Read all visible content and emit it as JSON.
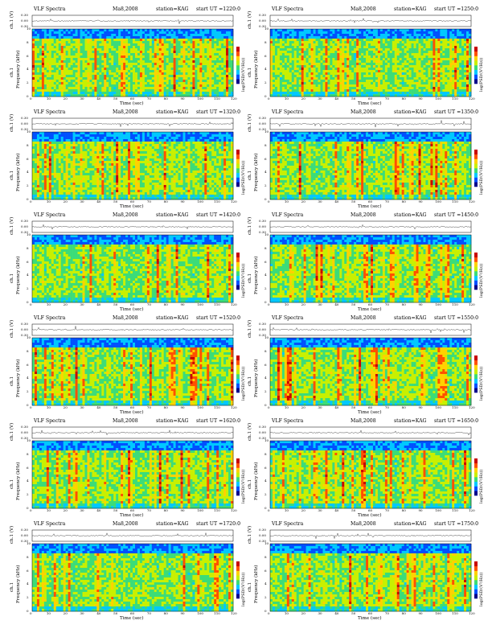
{
  "panels": [
    {
      "title": "VLF Spectra",
      "date": "Ma8,2008",
      "station": "station=KAG",
      "start": "start UT =1220:0"
    },
    {
      "title": "VLF Spectra",
      "date": "Ma8,2008",
      "station": "station=KAG",
      "start": "start UT =1250:0"
    },
    {
      "title": "VLF Spectra",
      "date": "Ma8,2008",
      "station": "station=KAG",
      "start": "start UT =1320:0"
    },
    {
      "title": "VLF Spectra",
      "date": "Ma8,2008",
      "station": "station=KAG",
      "start": "start UT =1350:0"
    },
    {
      "title": "VLF Spectra",
      "date": "Ma8,2008",
      "station": "station=KAG",
      "start": "start UT =1420:0"
    },
    {
      "title": "VLF Spectra",
      "date": "Ma8,2008",
      "station": "station=KAG",
      "start": "start UT =1450:0"
    },
    {
      "title": "VLF Spectra",
      "date": "Ma8,2008",
      "station": "station=KAG",
      "start": "start UT =1520:0"
    },
    {
      "title": "VLF Spectra",
      "date": "Ma8,2008",
      "station": "station=KAG",
      "start": "start UT =1550:0"
    },
    {
      "title": "VLF Spectra",
      "date": "Ma8,2008",
      "station": "station=KAG",
      "start": "start UT =1620:0"
    },
    {
      "title": "VLF Spectra",
      "date": "Ma8,2008",
      "station": "station=KAG",
      "start": "start UT =1650:0"
    },
    {
      "title": "VLF Spectra",
      "date": "Ma8,2008",
      "station": "station=KAG",
      "start": "start UT =1720:0"
    },
    {
      "title": "VLF Spectra",
      "date": "Ma8,2008",
      "station": "station=KAG",
      "start": "start UT =1750:0"
    }
  ],
  "labels": {
    "waveform_ylabel": "ch.1 (V)",
    "freq_ylabel_top": "ch.1",
    "freq_ylabel": "Frequency (kHz)",
    "colorbar_label": "log(PSD/(V²/Hz))",
    "xlabel": "Time (sec)"
  },
  "chart_data": {
    "type": "heatmap",
    "x_ticks": [
      0,
      10,
      20,
      30,
      40,
      50,
      60,
      70,
      80,
      90,
      100,
      110,
      120
    ],
    "xlim": [
      0,
      120
    ],
    "y_ticks_freq": [
      0,
      2,
      4,
      6,
      8,
      10
    ],
    "ylim_freq": [
      0,
      10
    ],
    "y_ticks_wave": [
      "0.30",
      "0.00",
      "0.30"
    ],
    "colorscale": [
      "#00008b",
      "#0050ff",
      "#00c8ff",
      "#3cdc78",
      "#c8f000",
      "#ffd200",
      "#ff5000",
      "#c80000"
    ]
  }
}
